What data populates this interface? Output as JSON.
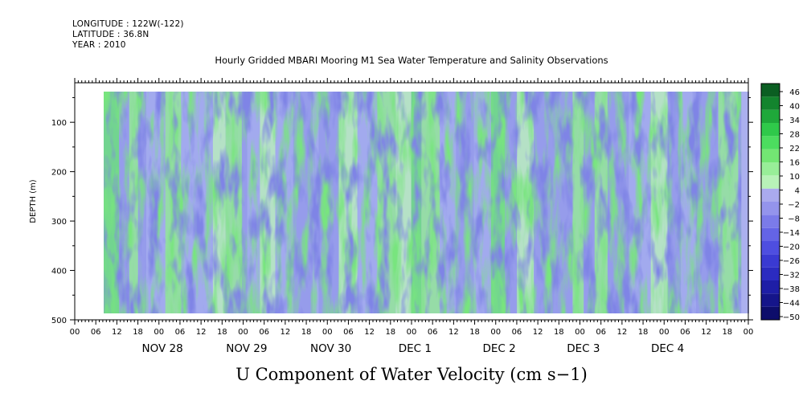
{
  "header": {
    "longitude": "LONGITUDE : 122W(-122)",
    "latitude": "LATITUDE : 36.8N",
    "year": "YEAR : 2010"
  },
  "title": "Hourly Gridded MBARI Mooring M1 Sea Water Temperature and Salinity Observations",
  "caption": "U Component of Water Velocity (cm s−1)",
  "chart_data": {
    "type": "heatmap",
    "title": "Hourly Gridded MBARI Mooring M1 Sea Water Temperature and Salinity Observations",
    "xlabel": "",
    "ylabel": "DEPTH (m)",
    "x_start": "2010-11-27 08:00",
    "x_end": "2010-12-04 22:00",
    "xlim": [
      "2010-11-27 00:00",
      "2010-12-05 00:00"
    ],
    "x_tick_hour_labels": [
      "00",
      "06",
      "12",
      "18"
    ],
    "x_day_labels": [
      "NOV 28",
      "NOV 29",
      "NOV 30",
      "DEC  1",
      "DEC  2",
      "DEC  3",
      "DEC  4"
    ],
    "ylim": [
      500,
      20
    ],
    "y_data_range": [
      20,
      490
    ],
    "y_ticks": [
      100,
      200,
      300,
      400,
      500
    ],
    "colorbar": {
      "levels": [
        -50,
        -44,
        -38,
        -32,
        -26,
        -20,
        -14,
        -8,
        -2,
        4,
        10,
        16,
        22,
        28,
        34,
        40,
        46
      ],
      "label_values": [
        46,
        40,
        34,
        28,
        22,
        16,
        10,
        4,
        -2,
        -8,
        -14,
        -20,
        -26,
        -32,
        -38,
        -44,
        -50
      ],
      "colors_low_to_high": [
        "#0d0d6b",
        "#15158a",
        "#1e1ea6",
        "#2b2bc0",
        "#3a3ad2",
        "#4e4ee0",
        "#6464e6",
        "#7b7be9",
        "#9494ec",
        "#aaaaee",
        "#b8f2b8",
        "#98ee98",
        "#73e673",
        "#4cdd5f",
        "#2fc94a",
        "#1fa83a",
        "#13842e",
        "#0b5e22"
      ]
    },
    "summary": "U velocity (cm s-1) vs time and depth; values mostly between -20 and +20, alternating bands of negative (blue) and positive (green) with depth-coherent vertical structure."
  }
}
